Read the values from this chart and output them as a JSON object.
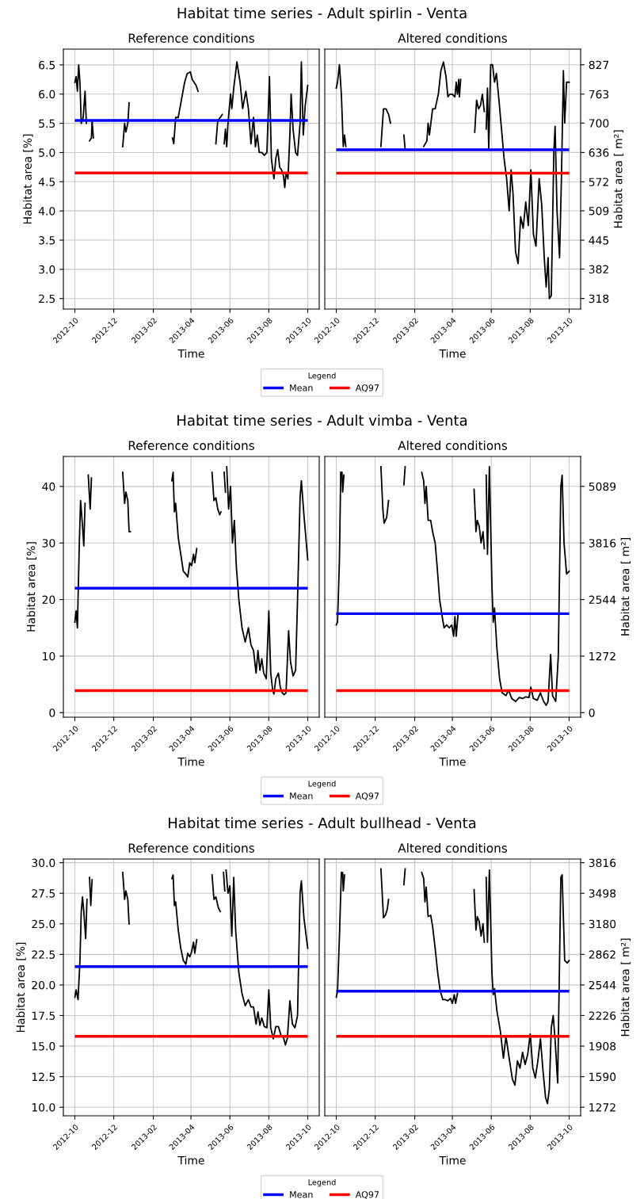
{
  "chart_data": [
    {
      "type": "line",
      "title": "Habitat time series - Adult spirlin - Venta",
      "subtitle": "Reference conditions",
      "xlabel": "Time",
      "ylabel": "Habitat area [%]",
      "legend_title": "Legend",
      "legend": "bottom",
      "grid": true,
      "xlim": [
        "2012-09-13",
        "2013-10-19"
      ],
      "xticks": [
        "2012-10",
        "2012-12",
        "2013-02",
        "2013-04",
        "2013-06",
        "2013-08",
        "2013-10"
      ],
      "ylim": [
        2.32,
        6.77
      ],
      "yticks": [
        2.5,
        {
          "value": 3,
          "label": "3.0"
        },
        3.5,
        {
          "value": 4,
          "label": "4.0"
        },
        4.5,
        {
          "value": 5,
          "label": "5.0"
        },
        5.5,
        {
          "value": 6,
          "label": "6.0"
        },
        6.5
      ],
      "series": [
        {
          "color": "#000000",
          "x": [
            "2012-10-01",
            "2012-10-03",
            "2012-10-05",
            "2012-10-07",
            "2012-10-09",
            "2012-10-11",
            "2012-10-14",
            "2012-10-17",
            "2012-10-19",
            "2012-10-21",
            "2012-10-24",
            "2012-10-27",
            "2012-10-28",
            "2012-10-30",
            "2012-11-01",
            "2012-12-15",
            "2012-12-18",
            "2012-12-20",
            "2012-12-23",
            "2012-12-25",
            "2012-12-27",
            "2013-03-03",
            "2013-03-05",
            "2013-03-08",
            "2013-03-12",
            "2013-03-17",
            "2013-03-22",
            "2013-03-26",
            "2013-03-31",
            "2013-04-03",
            "2013-04-06",
            "2013-04-09",
            "2013-04-12",
            "2013-04-14",
            "2013-05-10",
            "2013-05-13",
            "2013-05-17",
            "2013-05-20",
            "2013-05-21",
            "2013-05-23",
            "2013-05-25",
            "2013-05-27",
            "2013-05-29",
            "2013-06-02",
            "2013-06-04",
            "2013-06-07",
            "2013-06-12",
            "2013-06-17",
            "2013-06-21",
            "2013-06-26",
            "2013-06-30",
            "2013-07-04",
            "2013-07-08",
            "2013-07-11",
            "2013-07-14",
            "2013-07-17",
            "2013-07-21",
            "2013-07-25",
            "2013-07-29",
            "2013-08-02",
            "2013-08-05",
            "2013-08-09",
            "2013-08-12",
            "2013-08-15",
            "2013-08-18",
            "2013-08-21",
            "2013-08-24",
            "2013-08-26",
            "2013-08-28",
            "2013-08-31",
            "2013-09-03",
            "2013-09-05",
            "2013-09-08",
            "2013-09-12",
            "2013-09-15",
            "2013-09-19",
            "2013-09-21",
            "2013-09-24",
            "2013-09-27",
            "2013-10-01"
          ],
          "values": [
            6.2,
            6.3,
            6.05,
            6.5,
            6.2,
            5.5,
            5.6,
            6.05,
            5.5,
            null,
            5.2,
            5.25,
            5.55,
            5.25,
            null,
            5.1,
            5.5,
            5.35,
            5.5,
            5.85,
            null,
            5.25,
            5.15,
            5.6,
            5.6,
            5.9,
            6.2,
            6.35,
            6.38,
            6.25,
            6.2,
            6.15,
            6.05,
            null,
            5.15,
            5.55,
            5.6,
            5.65,
            null,
            5.15,
            5.4,
            5.1,
            5.5,
            6.0,
            5.75,
            6.1,
            6.55,
            6.2,
            5.75,
            6.05,
            5.75,
            5.15,
            5.6,
            5.1,
            5.3,
            5.0,
            5.0,
            4.95,
            5.0,
            6.3,
            4.9,
            4.55,
            4.9,
            5.05,
            4.75,
            4.7,
            4.6,
            4.4,
            4.65,
            4.55,
            5.3,
            6.0,
            5.4,
            5.0,
            4.95,
            5.5,
            6.55,
            5.3,
            5.8,
            6.15
          ]
        }
      ],
      "ref_lines": [
        {
          "axis": "y",
          "value": 5.55,
          "label": "Mean",
          "color": "#0000ff"
        },
        {
          "axis": "y",
          "value": 4.65,
          "label": "AQ97",
          "color": "#ff0000"
        }
      ]
    },
    {
      "type": "line",
      "subtitle": "Altered conditions",
      "xlabel": "Time",
      "y2label": "Habitat area [ m²]",
      "grid": true,
      "xlim": [
        "2012-09-13",
        "2013-10-19"
      ],
      "xticks": [
        "2012-10",
        "2012-12",
        "2013-02",
        "2013-04",
        "2013-06",
        "2013-08",
        "2013-10"
      ],
      "y2lim": [
        295,
        861
      ],
      "y2ticks": [
        318,
        382,
        445,
        509,
        572,
        636,
        700,
        763,
        827
      ],
      "series": [
        {
          "color": "#000000",
          "axis": "y2",
          "x": [
            "2012-10-01",
            "2012-10-03",
            "2012-10-06",
            "2012-10-09",
            "2012-10-12",
            "2012-10-14",
            "2012-10-16",
            "2012-10-18",
            "2012-12-10",
            "2012-12-14",
            "2012-12-18",
            "2012-12-22",
            "2012-12-25",
            "2012-12-27",
            "2013-01-15",
            "2013-01-17",
            "2013-01-19",
            "2013-02-15",
            "2013-02-20",
            "2013-02-22",
            "2013-02-24",
            "2013-03-01",
            "2013-03-05",
            "2013-03-10",
            "2013-03-14",
            "2013-03-18",
            "2013-03-22",
            "2013-03-25",
            "2013-03-28",
            "2013-04-01",
            "2013-04-05",
            "2013-04-07",
            "2013-04-09",
            "2013-04-11",
            "2013-04-12",
            "2013-04-14",
            "2013-04-16",
            "2013-05-06",
            "2013-05-09",
            "2013-05-12",
            "2013-05-15",
            "2013-05-18",
            "2013-05-21",
            "2013-05-22",
            "2013-05-24",
            "2013-05-26",
            "2013-05-28",
            "2013-05-31",
            "2013-06-03",
            "2013-06-06",
            "2013-06-09",
            "2013-06-13",
            "2013-06-17",
            "2013-06-21",
            "2013-06-25",
            "2013-06-29",
            "2013-07-02",
            "2013-07-05",
            "2013-07-09",
            "2013-07-13",
            "2013-07-17",
            "2013-07-21",
            "2013-07-25",
            "2013-07-29",
            "2013-08-02",
            "2013-08-06",
            "2013-08-10",
            "2013-08-15",
            "2013-08-19",
            "2013-08-23",
            "2013-08-26",
            "2013-08-29",
            "2013-08-31",
            "2013-09-03",
            "2013-09-07",
            "2013-09-09",
            "2013-09-12",
            "2013-09-16",
            "2013-09-19",
            "2013-09-22",
            "2013-09-24",
            "2013-09-27",
            "2013-10-01"
          ],
          "values": [
            776,
            789,
            827,
            763,
            649,
            674,
            649,
            null,
            649,
            731,
            731,
            719,
            700,
            null,
            674,
            642,
            null,
            649,
            661,
            700,
            674,
            731,
            731,
            763,
            814,
            833,
            801,
            757,
            763,
            763,
            757,
            789,
            763,
            795,
            757,
            795,
            null,
            680,
            750,
            731,
            738,
            763,
            725,
            null,
            687,
            776,
            642,
            827,
            827,
            789,
            808,
            750,
            687,
            623,
            579,
            509,
            598,
            547,
            420,
            394,
            496,
            471,
            528,
            477,
            598,
            458,
            432,
            579,
            522,
            407,
            343,
            407,
            318,
            324,
            636,
            693,
            509,
            407,
            585,
            814,
            700,
            789,
            789
          ]
        }
      ],
      "ref_lines": [
        {
          "axis": "y2",
          "value": 642,
          "color": "#0000ff"
        },
        {
          "axis": "y2",
          "value": 591,
          "color": "#ff0000"
        }
      ]
    },
    {
      "type": "line",
      "title": "Habitat time series - Adult vimba - Venta",
      "subtitle": "Reference conditions",
      "xlabel": "Time",
      "ylabel": "Habitat area [%]",
      "legend_title": "Legend",
      "legend": "bottom",
      "grid": true,
      "xlim": [
        "2012-09-13",
        "2013-10-19"
      ],
      "xticks": [
        "2012-10",
        "2012-12",
        "2013-02",
        "2013-04",
        "2013-06",
        "2013-08",
        "2013-10"
      ],
      "ylim": [
        -0.8,
        45.3
      ],
      "yticks": [
        0,
        10,
        20,
        30,
        40
      ],
      "series": [
        {
          "color": "#000000",
          "x": [
            "2012-10-01",
            "2012-10-03",
            "2012-10-05",
            "2012-10-08",
            "2012-10-10",
            "2012-10-13",
            "2012-10-15",
            "2012-10-17",
            "2012-10-19",
            "2012-10-22",
            "2012-10-25",
            "2012-10-27",
            "2012-10-29",
            "2012-12-15",
            "2012-12-18",
            "2012-12-20",
            "2012-12-23",
            "2012-12-25",
            "2012-12-27",
            "2012-12-29",
            "2013-03-02",
            "2013-03-04",
            "2013-03-06",
            "2013-03-08",
            "2013-03-12",
            "2013-03-16",
            "2013-03-20",
            "2013-03-24",
            "2013-03-27",
            "2013-03-30",
            "2013-04-02",
            "2013-04-05",
            "2013-04-07",
            "2013-04-10",
            "2013-04-12",
            "2013-05-04",
            "2013-05-07",
            "2013-05-10",
            "2013-05-13",
            "2013-05-16",
            "2013-05-18",
            "2013-05-20",
            "2013-05-23",
            "2013-05-25",
            "2013-05-26",
            "2013-05-27",
            "2013-05-30",
            "2013-06-02",
            "2013-06-05",
            "2013-06-08",
            "2013-06-11",
            "2013-06-15",
            "2013-06-20",
            "2013-06-25",
            "2013-06-30",
            "2013-07-04",
            "2013-07-08",
            "2013-07-12",
            "2013-07-15",
            "2013-07-18",
            "2013-07-21",
            "2013-07-24",
            "2013-07-28",
            "2013-08-01",
            "2013-08-04",
            "2013-08-07",
            "2013-08-09",
            "2013-08-12",
            "2013-08-16",
            "2013-08-19",
            "2013-08-22",
            "2013-08-25",
            "2013-08-28",
            "2013-09-01",
            "2013-09-04",
            "2013-09-08",
            "2013-09-12",
            "2013-09-15",
            "2013-09-19",
            "2013-09-21",
            "2013-09-25",
            "2013-10-01"
          ],
          "values": [
            16,
            18,
            15,
            30,
            37.5,
            33,
            29.5,
            37,
            null,
            42,
            36,
            41.5,
            null,
            42.5,
            37,
            39,
            37.5,
            32,
            32,
            null,
            41,
            42.5,
            35.5,
            37,
            31,
            28,
            25,
            24.5,
            24,
            26.5,
            26,
            28,
            26.5,
            29,
            null,
            42.5,
            37.5,
            38,
            36,
            35,
            35.5,
            null,
            42.5,
            39,
            null,
            43.5,
            36,
            40,
            30,
            34,
            26,
            20,
            15,
            12.5,
            15,
            12,
            11,
            7,
            11,
            7.5,
            9.5,
            7,
            6,
            18,
            7,
            4,
            3.3,
            6,
            7,
            4.5,
            3.5,
            3.2,
            3.5,
            14.5,
            9,
            6.5,
            7.5,
            20,
            38,
            41,
            35,
            27
          ]
        }
      ],
      "ref_lines": [
        {
          "axis": "y",
          "value": 22,
          "label": "Mean",
          "color": "#0000ff"
        },
        {
          "axis": "y",
          "value": 3.9,
          "label": "AQ97",
          "color": "#ff0000"
        }
      ]
    },
    {
      "type": "line",
      "subtitle": "Altered conditions",
      "xlabel": "Time",
      "y2label": "Habitat area [ m²]",
      "grid": true,
      "xlim": [
        "2012-09-13",
        "2013-10-19"
      ],
      "xticks": [
        "2012-10",
        "2012-12",
        "2013-02",
        "2013-04",
        "2013-06",
        "2013-08",
        "2013-10"
      ],
      "y2lim": [
        -102,
        5762
      ],
      "y2ticks": [
        0,
        1272,
        2544,
        3816,
        5089
      ],
      "series": [
        {
          "color": "#000000",
          "axis": "y2",
          "x": [
            "2012-10-01",
            "2012-10-03",
            "2012-10-06",
            "2012-10-08",
            "2012-10-10",
            "2012-10-11",
            "2012-10-13",
            "2012-10-15",
            "2012-12-10",
            "2012-12-13",
            "2012-12-15",
            "2012-12-19",
            "2012-12-22",
            "2012-12-24",
            "2013-01-15",
            "2013-01-17",
            "2013-01-19",
            "2013-02-12",
            "2013-02-15",
            "2013-02-17",
            "2013-02-19",
            "2013-02-22",
            "2013-02-26",
            "2013-03-01",
            "2013-03-05",
            "2013-03-08",
            "2013-03-12",
            "2013-03-16",
            "2013-03-19",
            "2013-03-23",
            "2013-03-27",
            "2013-03-31",
            "2013-04-03",
            "2013-04-05",
            "2013-04-07",
            "2013-04-10",
            "2013-04-12",
            "2013-05-05",
            "2013-05-08",
            "2013-05-10",
            "2013-05-13",
            "2013-05-16",
            "2013-05-19",
            "2013-05-21",
            "2013-05-22",
            "2013-05-24",
            "2013-05-26",
            "2013-05-29",
            "2013-06-02",
            "2013-06-04",
            "2013-06-06",
            "2013-06-10",
            "2013-06-14",
            "2013-06-18",
            "2013-06-24",
            "2013-06-28",
            "2013-07-03",
            "2013-07-09",
            "2013-07-15",
            "2013-07-20",
            "2013-07-25",
            "2013-07-30",
            "2013-08-02",
            "2013-08-06",
            "2013-08-12",
            "2013-08-17",
            "2013-08-22",
            "2013-08-26",
            "2013-08-29",
            "2013-09-02",
            "2013-09-05",
            "2013-09-10",
            "2013-09-14",
            "2013-09-18",
            "2013-09-20",
            "2013-09-23",
            "2013-09-27",
            "2013-10-01"
          ],
          "values": [
            1972,
            2035,
            3434,
            5406,
            5406,
            4961,
            5342,
            null,
            5533,
            4579,
            4261,
            4388,
            4770,
            null,
            5126,
            5533,
            null,
            5406,
            5215,
            4706,
            5088,
            4325,
            4325,
            4070,
            3816,
            3307,
            2544,
            2162,
            1908,
            1972,
            1908,
            1972,
            1717,
            2162,
            1717,
            2226,
            null,
            5024,
            4070,
            4325,
            4198,
            3816,
            4070,
            3689,
            null,
            5342,
            3562,
            5533,
            2862,
            2035,
            2353,
            1399,
            763,
            445,
            382,
            509,
            318,
            254,
            343,
            318,
            356,
            343,
            572,
            318,
            280,
            445,
            254,
            165,
            254,
            1310,
            382,
            254,
            1272,
            5088,
            5342,
            3816,
            3116,
            3180
          ]
        }
      ],
      "ref_lines": [
        {
          "axis": "y2",
          "value": 2226,
          "color": "#0000ff"
        },
        {
          "axis": "y2",
          "value": 496,
          "color": "#ff0000"
        }
      ]
    },
    {
      "type": "line",
      "title": "Habitat time series - Adult bullhead - Venta",
      "subtitle": "Reference conditions",
      "xlabel": "Time",
      "ylabel": "Habitat area [%]",
      "legend_title": "Legend",
      "legend": "bottom",
      "grid": true,
      "xlim": [
        "2012-09-13",
        "2013-10-19"
      ],
      "xticks": [
        "2012-10",
        "2012-12",
        "2013-02",
        "2013-04",
        "2013-06",
        "2013-08",
        "2013-10"
      ],
      "ylim": [
        9.3,
        30.3
      ],
      "yticks": [
        {
          "value": 10,
          "label": "10.0"
        },
        12.5,
        {
          "value": 15,
          "label": "15.0"
        },
        17.5,
        {
          "value": 20,
          "label": "20.0"
        },
        22.5,
        {
          "value": 25,
          "label": "25.0"
        },
        27.5,
        {
          "value": 30,
          "label": "30.0"
        }
      ],
      "series": [
        {
          "color": "#000000",
          "x": [
            "2012-10-01",
            "2012-10-03",
            "2012-10-06",
            "2012-10-09",
            "2012-10-11",
            "2012-10-13",
            "2012-10-15",
            "2012-10-18",
            "2012-10-20",
            "2012-10-22",
            "2012-10-24",
            "2012-10-26",
            "2012-10-28",
            "2012-10-30",
            "2012-12-15",
            "2012-12-18",
            "2012-12-20",
            "2012-12-23",
            "2012-12-25",
            "2012-12-27",
            "2013-03-02",
            "2013-03-04",
            "2013-03-06",
            "2013-03-08",
            "2013-03-12",
            "2013-03-16",
            "2013-03-20",
            "2013-03-24",
            "2013-03-27",
            "2013-03-30",
            "2013-04-02",
            "2013-04-05",
            "2013-04-07",
            "2013-04-10",
            "2013-04-12",
            "2013-05-04",
            "2013-05-07",
            "2013-05-10",
            "2013-05-14",
            "2013-05-17",
            "2013-05-19",
            "2013-05-22",
            "2013-05-24",
            "2013-05-25",
            "2013-05-26",
            "2013-05-29",
            "2013-06-01",
            "2013-06-04",
            "2013-06-07",
            "2013-06-10",
            "2013-06-15",
            "2013-06-20",
            "2013-06-25",
            "2013-06-30",
            "2013-07-04",
            "2013-07-08",
            "2013-07-12",
            "2013-07-15",
            "2013-07-18",
            "2013-07-21",
            "2013-07-25",
            "2013-07-29",
            "2013-08-01",
            "2013-08-04",
            "2013-08-08",
            "2013-08-12",
            "2013-08-16",
            "2013-08-20",
            "2013-08-24",
            "2013-08-27",
            "2013-08-30",
            "2013-09-03",
            "2013-09-07",
            "2013-09-11",
            "2013-09-15",
            "2013-09-19",
            "2013-09-21",
            "2013-09-25",
            "2013-10-01"
          ],
          "values": [
            19,
            19.6,
            18.8,
            22,
            26,
            27.2,
            26,
            23.8,
            27,
            null,
            28.8,
            26.5,
            28.6,
            null,
            29.2,
            27,
            27.7,
            27,
            25,
            null,
            28.7,
            29,
            26.5,
            26.8,
            24.5,
            23,
            22,
            21.7,
            22.6,
            22.3,
            22.7,
            23.5,
            22.6,
            23.7,
            null,
            29,
            27,
            27.2,
            26.3,
            26,
            null,
            29.2,
            27.7,
            null,
            29.4,
            27.5,
            28.1,
            24,
            28.8,
            24.5,
            21,
            19.3,
            18.3,
            18.8,
            18.2,
            18.2,
            16.8,
            17.8,
            16.7,
            17.3,
            16.6,
            16.5,
            19.6,
            16.5,
            15.6,
            16.6,
            16.6,
            15.9,
            15.7,
            15.1,
            15.6,
            18.7,
            16.8,
            16.5,
            17.5,
            27.5,
            28.5,
            25.5,
            23
          ]
        }
      ],
      "ref_lines": [
        {
          "axis": "y",
          "value": 21.5,
          "label": "Mean",
          "color": "#0000ff"
        },
        {
          "axis": "y",
          "value": 15.8,
          "label": "AQ97",
          "color": "#ff0000"
        }
      ]
    },
    {
      "type": "line",
      "subtitle": "Altered conditions",
      "xlabel": "Time",
      "y2label": "Habitat area [ m²]",
      "grid": true,
      "xlim": [
        "2012-09-13",
        "2013-10-19"
      ],
      "xticks": [
        "2012-10",
        "2012-12",
        "2013-02",
        "2013-04",
        "2013-06",
        "2013-08",
        "2013-10"
      ],
      "y2lim": [
        1183,
        3854
      ],
      "y2ticks": [
        1272,
        1590,
        1908,
        2226,
        2544,
        2862,
        3180,
        3498,
        3816
      ],
      "series": [
        {
          "color": "#000000",
          "axis": "y2",
          "x": [
            "2012-10-01",
            "2012-10-03",
            "2012-10-06",
            "2012-10-09",
            "2012-10-11",
            "2012-10-12",
            "2012-10-14",
            "2012-10-16",
            "2012-12-10",
            "2012-12-14",
            "2012-12-17",
            "2012-12-20",
            "2012-12-22",
            "2012-12-24",
            "2013-01-15",
            "2013-01-17",
            "2013-01-19",
            "2013-02-12",
            "2013-02-15",
            "2013-02-17",
            "2013-02-19",
            "2013-02-22",
            "2013-02-26",
            "2013-03-01",
            "2013-03-05",
            "2013-03-09",
            "2013-03-13",
            "2013-03-17",
            "2013-03-21",
            "2013-03-25",
            "2013-03-29",
            "2013-04-01",
            "2013-04-04",
            "2013-04-06",
            "2013-04-09",
            "2013-04-11",
            "2013-05-05",
            "2013-05-08",
            "2013-05-10",
            "2013-05-13",
            "2013-05-16",
            "2013-05-19",
            "2013-05-21",
            "2013-05-22",
            "2013-05-24",
            "2013-05-26",
            "2013-05-29",
            "2013-06-02",
            "2013-06-04",
            "2013-06-06",
            "2013-06-10",
            "2013-06-15",
            "2013-06-20",
            "2013-06-24",
            "2013-06-29",
            "2013-07-04",
            "2013-07-08",
            "2013-07-12",
            "2013-07-16",
            "2013-07-20",
            "2013-07-24",
            "2013-07-28",
            "2013-08-01",
            "2013-08-05",
            "2013-08-09",
            "2013-08-13",
            "2013-08-17",
            "2013-08-21",
            "2013-08-25",
            "2013-08-28",
            "2013-08-31",
            "2013-09-03",
            "2013-09-06",
            "2013-09-09",
            "2013-09-13",
            "2013-09-18",
            "2013-09-20",
            "2013-09-24",
            "2013-09-28",
            "2013-10-01"
          ],
          "values": [
            2417,
            2480,
            3053,
            3714,
            3714,
            3523,
            3689,
            null,
            3752,
            3244,
            3269,
            3333,
            3434,
            null,
            3587,
            3752,
            null,
            3714,
            3651,
            3409,
            3562,
            3256,
            3269,
            3155,
            2926,
            2671,
            2480,
            2391,
            2391,
            2379,
            2404,
            2353,
            2442,
            2353,
            2455,
            null,
            3536,
            3116,
            3256,
            3205,
            3053,
            3180,
            2989,
            null,
            3663,
            2989,
            3740,
            2671,
            2442,
            2506,
            2264,
            2073,
            1781,
            2010,
            1781,
            1565,
            1501,
            1755,
            1679,
            1844,
            1717,
            1819,
            2035,
            1679,
            1577,
            1755,
            1984,
            1654,
            1374,
            1310,
            1463,
            2099,
            2226,
            1972,
            1526,
            3663,
            3689,
            2798,
            2773,
            2798
          ]
        }
      ],
      "ref_lines": [
        {
          "axis": "y2",
          "value": 2480,
          "color": "#0000ff"
        },
        {
          "axis": "y2",
          "value": 2010,
          "color": "#ff0000"
        }
      ]
    }
  ]
}
